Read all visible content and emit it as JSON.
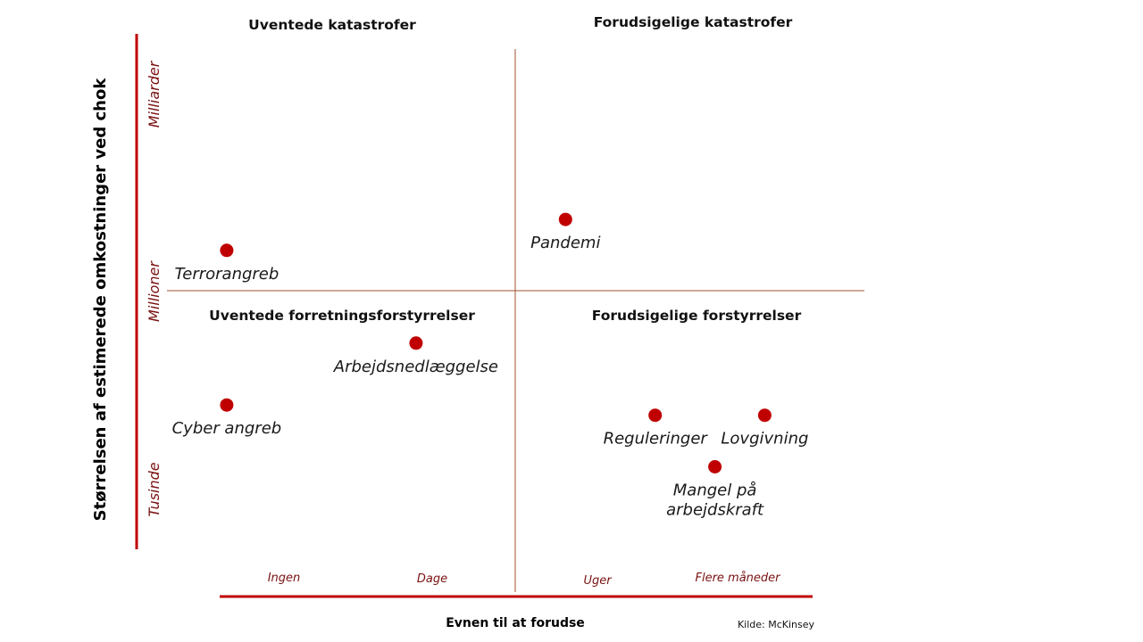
{
  "chart_data": {
    "type": "scatter",
    "title": "",
    "xlabel": "Evnen til at forudse",
    "ylabel": "Størrelsen af estimerede omkostninger ved chok",
    "x_ticks": [
      "Ingen",
      "Dage",
      "Uger",
      "Flere måneder"
    ],
    "y_ticks": [
      "Tusinde",
      "Millioner",
      "Milliarder"
    ],
    "quadrants": {
      "top_left": "Uventede katastrofer",
      "top_right": "Forudsigelige katastrofer",
      "bottom_left": "Uventede forretningsforstyrrelser",
      "bottom_right": "Forudsigelige forstyrrelser"
    },
    "points": [
      {
        "label": "Terrorangreb",
        "x": 0.3,
        "y": 1.15
      },
      {
        "label": "Pandemi",
        "x": 2.0,
        "y": 1.3
      },
      {
        "label": "Arbejdsnedlæggelse",
        "x": 1.25,
        "y": 0.7
      },
      {
        "label": "Cyber angreb",
        "x": 0.3,
        "y": 0.4
      },
      {
        "label": "Reguleringer",
        "x": 2.45,
        "y": 0.35
      },
      {
        "label": "Lovgivning",
        "x": 3.0,
        "y": 0.35
      },
      {
        "label": "Mangel på arbejdskraft",
        "x": 2.75,
        "y": 0.1
      }
    ],
    "xlim": [
      0,
      3.5
    ],
    "ylim": [
      -0.3,
      2.2
    ],
    "grid": false,
    "legend": "none"
  },
  "source": "Kilde: McKinsey",
  "colors": {
    "point": "#c00000",
    "axis": "#c00000",
    "divider": "#a0522d",
    "tick_text": "#7a1212"
  }
}
